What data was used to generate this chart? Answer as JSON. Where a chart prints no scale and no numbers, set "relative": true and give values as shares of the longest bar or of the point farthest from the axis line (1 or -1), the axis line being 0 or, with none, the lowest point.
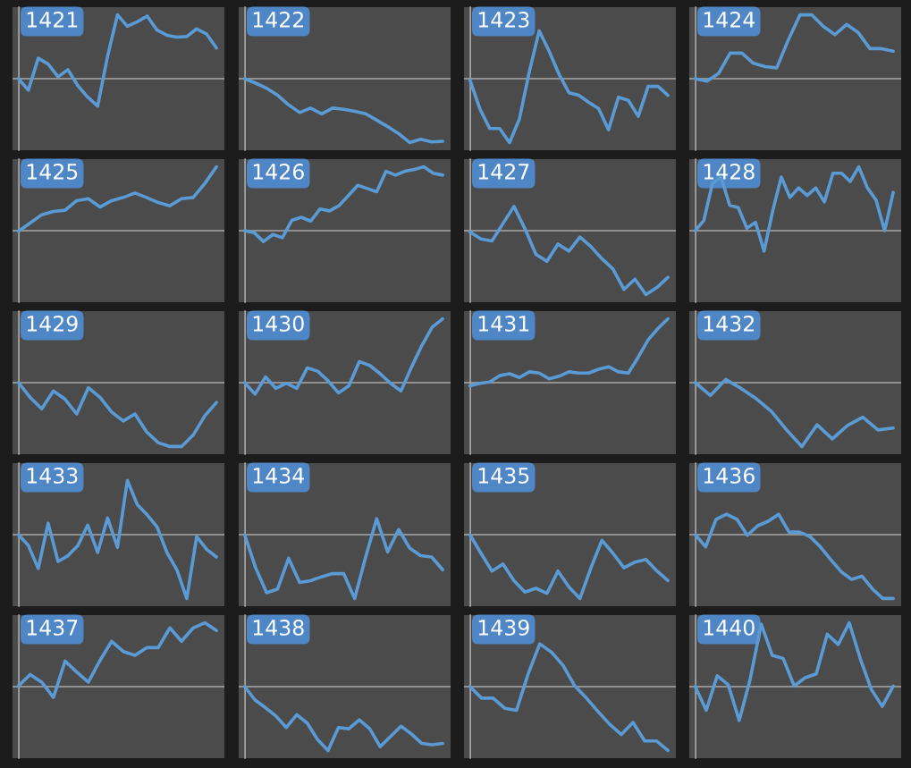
{
  "chart_data": [
    {
      "type": "line",
      "title": "1421",
      "relative": true,
      "categories": [
        null,
        null,
        null,
        null,
        null,
        null,
        null,
        null,
        null,
        null,
        null,
        null,
        null,
        null,
        null,
        null,
        null,
        null,
        null,
        null,
        null
      ],
      "series": [
        {
          "color": "#5b9bd5",
          "values": [
            0,
            -0.18,
            0.32,
            0.23,
            0.03,
            0.14,
            -0.11,
            -0.29,
            -0.43,
            0.35,
            1,
            0.82,
            0.89,
            0.98,
            0.76,
            0.68,
            0.65,
            0.66,
            0.78,
            0.7,
            0.48
          ]
        }
      ]
    },
    {
      "type": "line",
      "title": "1422",
      "relative": true,
      "categories": [
        null,
        null,
        null,
        null,
        null,
        null,
        null,
        null,
        null,
        null,
        null,
        null,
        null,
        null,
        null,
        null,
        null,
        null,
        null
      ],
      "series": [
        {
          "color": "#5b9bd5",
          "values": [
            0,
            -0.07,
            -0.15,
            -0.26,
            -0.41,
            -0.53,
            -0.46,
            -0.55,
            -0.46,
            -0.48,
            -0.51,
            -0.55,
            -0.65,
            -0.75,
            -0.86,
            -1,
            -0.95,
            -0.99,
            -0.98
          ]
        }
      ]
    },
    {
      "type": "line",
      "title": "1423",
      "relative": true,
      "categories": [
        null,
        null,
        null,
        null,
        null,
        null,
        null,
        null,
        null,
        null,
        null,
        null,
        null,
        null,
        null,
        null,
        null,
        null,
        null,
        null,
        null
      ],
      "series": [
        {
          "color": "#5b9bd5",
          "values": [
            -0.02,
            -0.47,
            -0.78,
            -0.78,
            -1,
            -0.63,
            0.11,
            0.75,
            0.43,
            0.07,
            -0.22,
            -0.26,
            -0.37,
            -0.47,
            -0.8,
            -0.29,
            -0.34,
            -0.59,
            -0.12,
            -0.12,
            -0.26
          ]
        }
      ]
    },
    {
      "type": "line",
      "title": "1424",
      "relative": true,
      "categories": [
        null,
        null,
        null,
        null,
        null,
        null,
        null,
        null,
        null,
        null,
        null,
        null,
        null,
        null,
        null,
        null,
        null,
        null
      ],
      "series": [
        {
          "color": "#5b9bd5",
          "values": [
            0,
            -0.04,
            0.08,
            0.4,
            0.4,
            0.24,
            0.19,
            0.17,
            0.61,
            1,
            1,
            0.82,
            0.69,
            0.85,
            0.72,
            0.47,
            0.47,
            0.43
          ]
        }
      ]
    },
    {
      "type": "line",
      "title": "1425",
      "relative": true,
      "categories": [
        null,
        null,
        null,
        null,
        null,
        null,
        null,
        null,
        null,
        null,
        null,
        null,
        null,
        null,
        null,
        null,
        null,
        null
      ],
      "series": [
        {
          "color": "#5b9bd5",
          "values": [
            -0.01,
            0.12,
            0.25,
            0.3,
            0.32,
            0.47,
            0.5,
            0.37,
            0.47,
            0.52,
            0.59,
            0.52,
            0.44,
            0.39,
            0.5,
            0.52,
            0.74,
            1
          ]
        }
      ]
    },
    {
      "type": "line",
      "title": "1426",
      "relative": true,
      "categories": [
        null,
        null,
        null,
        null,
        null,
        null,
        null,
        null,
        null,
        null,
        null,
        null,
        null,
        null,
        null,
        null,
        null,
        null,
        null,
        null,
        null,
        null
      ],
      "series": [
        {
          "color": "#5b9bd5",
          "values": [
            0,
            -0.03,
            -0.17,
            -0.06,
            -0.11,
            0.16,
            0.21,
            0.15,
            0.34,
            0.31,
            0.39,
            0.55,
            0.71,
            0.66,
            0.61,
            0.93,
            0.87,
            0.93,
            0.96,
            1,
            0.9,
            0.87
          ]
        }
      ]
    },
    {
      "type": "line",
      "title": "1427",
      "relative": true,
      "categories": [
        null,
        null,
        null,
        null,
        null,
        null,
        null,
        null,
        null,
        null,
        null,
        null,
        null,
        null,
        null,
        null,
        null,
        null,
        null
      ],
      "series": [
        {
          "color": "#5b9bd5",
          "values": [
            -0.02,
            -0.13,
            -0.16,
            0.11,
            0.38,
            0.03,
            -0.37,
            -0.48,
            -0.21,
            -0.32,
            -0.1,
            -0.25,
            -0.44,
            -0.6,
            -0.92,
            -0.76,
            -1,
            -0.89,
            -0.73
          ]
        }
      ]
    },
    {
      "type": "line",
      "title": "1428",
      "relative": true,
      "categories": [
        null,
        null,
        null,
        null,
        null,
        null,
        null,
        null,
        null,
        null,
        null,
        null,
        null,
        null,
        null,
        null,
        null,
        null,
        null,
        null,
        null,
        null,
        null,
        null
      ],
      "series": [
        {
          "color": "#5b9bd5",
          "values": [
            0,
            0.16,
            0.74,
            0.84,
            0.4,
            0.36,
            0.04,
            0.13,
            -0.32,
            0.31,
            0.84,
            0.52,
            0.67,
            0.55,
            0.67,
            0.45,
            0.9,
            0.9,
            0.77,
            1,
            0.67,
            0.48,
            0,
            0.6
          ]
        }
      ]
    },
    {
      "type": "line",
      "title": "1429",
      "relative": true,
      "categories": [
        null,
        null,
        null,
        null,
        null,
        null,
        null,
        null,
        null,
        null,
        null,
        null,
        null,
        null,
        null,
        null,
        null,
        null
      ],
      "series": [
        {
          "color": "#5b9bd5",
          "values": [
            0,
            -0.23,
            -0.41,
            -0.13,
            -0.26,
            -0.49,
            -0.08,
            -0.23,
            -0.46,
            -0.6,
            -0.49,
            -0.77,
            -0.94,
            -1,
            -1,
            -0.82,
            -0.52,
            -0.31
          ]
        }
      ]
    },
    {
      "type": "line",
      "title": "1430",
      "relative": true,
      "categories": [
        null,
        null,
        null,
        null,
        null,
        null,
        null,
        null,
        null,
        null,
        null,
        null,
        null,
        null,
        null,
        null,
        null,
        null,
        null,
        null
      ],
      "series": [
        {
          "color": "#5b9bd5",
          "values": [
            0,
            -0.18,
            0.09,
            -0.09,
            -0.01,
            -0.09,
            0.23,
            0.18,
            0.03,
            -0.16,
            -0.05,
            0.33,
            0.27,
            0.14,
            -0.01,
            -0.13,
            0.24,
            0.58,
            0.87,
            1
          ]
        }
      ]
    },
    {
      "type": "line",
      "title": "1431",
      "relative": true,
      "categories": [
        null,
        null,
        null,
        null,
        null,
        null,
        null,
        null,
        null,
        null,
        null,
        null,
        null,
        null,
        null,
        null,
        null,
        null,
        null,
        null,
        null
      ],
      "series": [
        {
          "color": "#5b9bd5",
          "values": [
            -0.05,
            -0.01,
            0.01,
            0.11,
            0.14,
            0.08,
            0.17,
            0.15,
            0.06,
            0.1,
            0.17,
            0.15,
            0.15,
            0.21,
            0.25,
            0.17,
            0.15,
            0.4,
            0.67,
            0.85,
            1
          ]
        }
      ]
    },
    {
      "type": "line",
      "title": "1432",
      "relative": true,
      "categories": [
        null,
        null,
        null,
        null,
        null,
        null,
        null,
        null,
        null,
        null,
        null,
        null,
        null,
        null
      ],
      "series": [
        {
          "color": "#5b9bd5",
          "values": [
            0,
            -0.2,
            0.05,
            -0.09,
            -0.25,
            -0.45,
            -0.74,
            -1,
            -0.66,
            -0.88,
            -0.67,
            -0.54,
            -0.74,
            -0.71
          ]
        }
      ]
    },
    {
      "type": "line",
      "title": "1433",
      "relative": true,
      "categories": [
        null,
        null,
        null,
        null,
        null,
        null,
        null,
        null,
        null,
        null,
        null,
        null,
        null,
        null,
        null,
        null,
        null,
        null,
        null,
        null,
        null
      ],
      "series": [
        {
          "color": "#5b9bd5",
          "values": [
            0,
            -0.17,
            -0.53,
            0.18,
            -0.42,
            -0.33,
            -0.17,
            0.15,
            -0.28,
            0.26,
            -0.2,
            0.85,
            0.47,
            0.31,
            0.12,
            -0.28,
            -0.55,
            -1,
            -0.03,
            -0.23,
            -0.35
          ]
        }
      ]
    },
    {
      "type": "line",
      "title": "1434",
      "relative": true,
      "categories": [
        null,
        null,
        null,
        null,
        null,
        null,
        null,
        null,
        null,
        null,
        null,
        null,
        null,
        null,
        null,
        null,
        null,
        null,
        null
      ],
      "series": [
        {
          "color": "#5b9bd5",
          "values": [
            0,
            -0.52,
            -0.91,
            -0.85,
            -0.37,
            -0.75,
            -0.72,
            -0.66,
            -0.61,
            -0.61,
            -1,
            -0.35,
            0.25,
            -0.27,
            0.08,
            -0.21,
            -0.33,
            -0.35,
            -0.55
          ]
        }
      ]
    },
    {
      "type": "line",
      "title": "1435",
      "relative": true,
      "categories": [
        null,
        null,
        null,
        null,
        null,
        null,
        null,
        null,
        null,
        null,
        null,
        null,
        null,
        null,
        null,
        null,
        null,
        null,
        null
      ],
      "series": [
        {
          "color": "#5b9bd5",
          "values": [
            0,
            -0.29,
            -0.57,
            -0.46,
            -0.72,
            -0.9,
            -0.84,
            -0.92,
            -0.57,
            -0.82,
            -1,
            -0.52,
            -0.09,
            -0.29,
            -0.52,
            -0.43,
            -0.39,
            -0.57,
            -0.72
          ]
        }
      ]
    },
    {
      "type": "line",
      "title": "1436",
      "relative": true,
      "categories": [
        null,
        null,
        null,
        null,
        null,
        null,
        null,
        null,
        null,
        null,
        null,
        null,
        null,
        null,
        null,
        null,
        null,
        null,
        null,
        null
      ],
      "series": [
        {
          "color": "#5b9bd5",
          "values": [
            0,
            -0.19,
            0.24,
            0.32,
            0.24,
            -0.01,
            0.14,
            0.21,
            0.32,
            0.04,
            0.04,
            -0.03,
            -0.19,
            -0.39,
            -0.58,
            -0.7,
            -0.65,
            -0.85,
            -1,
            -1
          ]
        }
      ]
    },
    {
      "type": "line",
      "title": "1437",
      "relative": true,
      "categories": [
        null,
        null,
        null,
        null,
        null,
        null,
        null,
        null,
        null,
        null,
        null,
        null,
        null,
        null,
        null,
        null,
        null,
        null
      ],
      "series": [
        {
          "color": "#5b9bd5",
          "values": [
            0.01,
            0.19,
            0.07,
            -0.17,
            0.4,
            0.23,
            0.07,
            0.41,
            0.71,
            0.55,
            0.49,
            0.61,
            0.61,
            0.92,
            0.71,
            0.92,
            1,
            0.88
          ]
        }
      ]
    },
    {
      "type": "line",
      "title": "1438",
      "relative": true,
      "categories": [
        null,
        null,
        null,
        null,
        null,
        null,
        null,
        null,
        null,
        null,
        null,
        null,
        null,
        null,
        null,
        null,
        null,
        null,
        null,
        null
      ],
      "series": [
        {
          "color": "#5b9bd5",
          "values": [
            0,
            -0.21,
            -0.33,
            -0.46,
            -0.64,
            -0.44,
            -0.57,
            -0.83,
            -1,
            -0.64,
            -0.66,
            -0.52,
            -0.66,
            -0.94,
            -0.78,
            -0.62,
            -0.74,
            -0.89,
            -0.91,
            -0.89
          ]
        }
      ]
    },
    {
      "type": "line",
      "title": "1439",
      "relative": true,
      "categories": [
        null,
        null,
        null,
        null,
        null,
        null,
        null,
        null,
        null,
        null,
        null,
        null,
        null,
        null,
        null,
        null,
        null,
        null
      ],
      "series": [
        {
          "color": "#5b9bd5",
          "values": [
            0,
            -0.18,
            -0.18,
            -0.34,
            -0.37,
            0.2,
            0.67,
            0.54,
            0.33,
            0.01,
            -0.18,
            -0.39,
            -0.59,
            -0.75,
            -0.56,
            -0.85,
            -0.85,
            -1
          ]
        }
      ]
    },
    {
      "type": "line",
      "title": "1440",
      "relative": true,
      "categories": [
        null,
        null,
        null,
        null,
        null,
        null,
        null,
        null,
        null,
        null,
        null,
        null,
        null,
        null,
        null,
        null,
        null,
        null,
        null
      ],
      "series": [
        {
          "color": "#5b9bd5",
          "values": [
            0,
            -0.37,
            0.17,
            0.03,
            -0.53,
            0.12,
            0.98,
            0.49,
            0.44,
            0.01,
            0.14,
            0.2,
            0.82,
            0.66,
            1,
            0.44,
            -0.04,
            -0.31,
            0.01
          ]
        }
      ]
    }
  ]
}
